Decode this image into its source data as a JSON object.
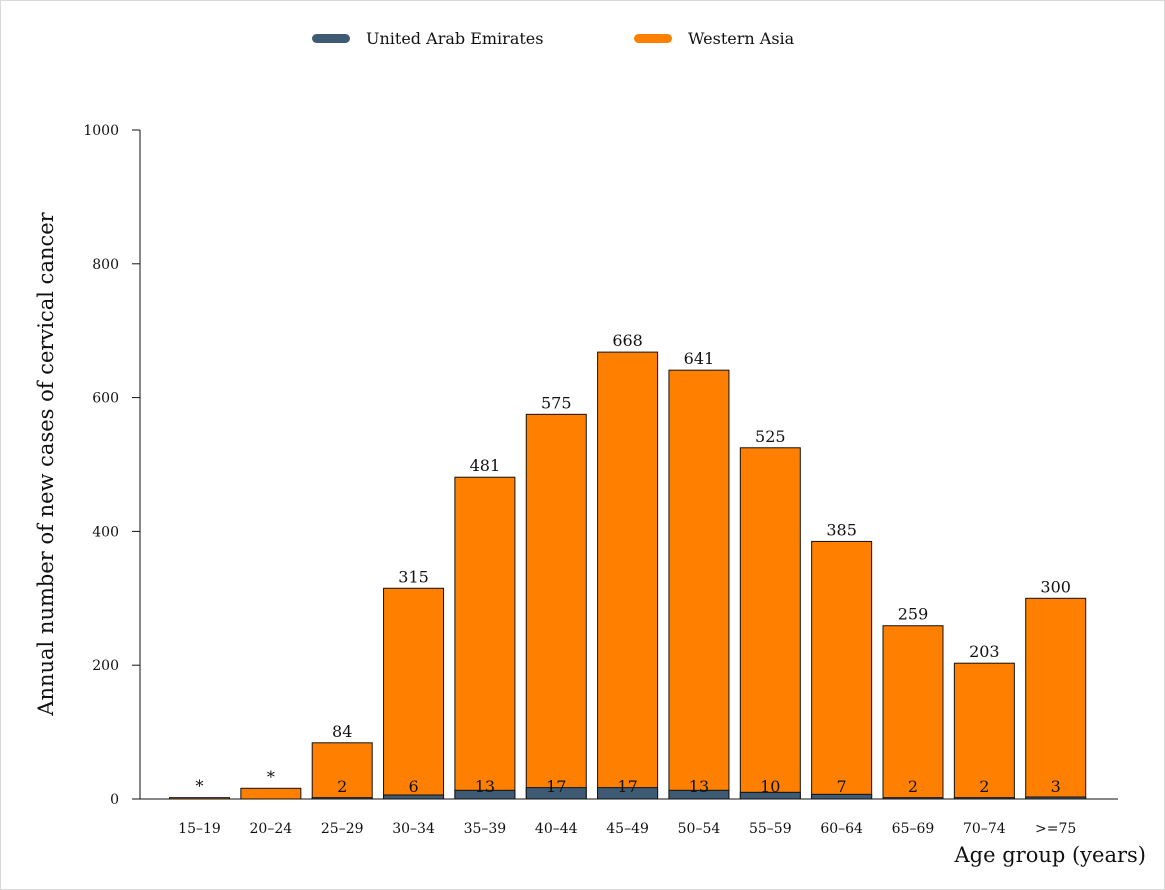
{
  "chart_data": {
    "type": "bar",
    "title": "",
    "xlabel": "Age group (years)",
    "ylabel": "Annual number of new cases of cervical cancer",
    "ylim": [
      0,
      1000
    ],
    "yticks": [
      0,
      200,
      400,
      600,
      800,
      1000
    ],
    "categories": [
      "15–19",
      "20–24",
      "25–29",
      "30–34",
      "35–39",
      "40–44",
      "45–49",
      "50–54",
      "55–59",
      "60–64",
      "65–69",
      "70–74",
      ">=75"
    ],
    "legend_position": "top-center",
    "grid": false,
    "overlaid": true,
    "series": [
      {
        "name": "United Arab Emirates",
        "color": "#3f5b73",
        "values": [
          0,
          0,
          2,
          6,
          13,
          17,
          17,
          13,
          10,
          7,
          2,
          2,
          3
        ],
        "labels": [
          "",
          "",
          "2",
          "6",
          "13",
          "17",
          "17",
          "13",
          "10",
          "7",
          "2",
          "2",
          "3"
        ]
      },
      {
        "name": "Western Asia",
        "color": "#ff8000",
        "values": [
          2,
          16,
          84,
          315,
          481,
          575,
          668,
          641,
          525,
          385,
          259,
          203,
          300
        ],
        "labels": [
          "*",
          "*",
          "84",
          "315",
          "481",
          "575",
          "668",
          "641",
          "525",
          "385",
          "259",
          "203",
          "300"
        ]
      }
    ]
  }
}
